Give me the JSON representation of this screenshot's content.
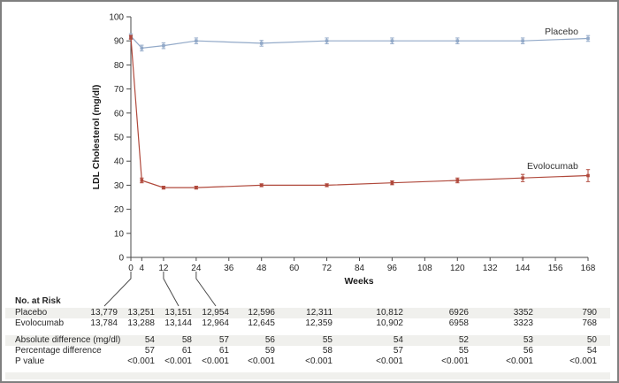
{
  "figure_labels": {
    "y_axis_title": "LDL Cholesterol (mg/dl)",
    "x_axis_title": "Weeks",
    "placebo_label": "Placebo",
    "evolocumab_label": "Evolocumab"
  },
  "colors": {
    "placebo": "#92a9c8",
    "evolocumab": "#b0493c",
    "axis": "#4a4a4a",
    "text": "#262626",
    "row_band": "#f0f0ed",
    "frame": "#7f7f7f"
  },
  "chart_data": {
    "type": "line",
    "title": "",
    "xlabel": "Weeks",
    "ylabel": "LDL Cholesterol (mg/dl)",
    "xlim": [
      0,
      168
    ],
    "ylim": [
      0,
      100
    ],
    "x_ticks": [
      0,
      4,
      12,
      24,
      36,
      48,
      60,
      72,
      84,
      96,
      108,
      120,
      132,
      144,
      156,
      168
    ],
    "y_ticks": [
      0,
      10,
      20,
      30,
      40,
      50,
      60,
      70,
      80,
      90,
      100
    ],
    "x": [
      0,
      4,
      12,
      24,
      48,
      72,
      96,
      120,
      144,
      168
    ],
    "grid": "off",
    "legend_position": "labels-at-line-end",
    "series": [
      {
        "name": "Placebo",
        "color": "#92a9c8",
        "values": [
          92,
          87,
          88,
          90,
          89,
          90,
          90,
          90,
          90,
          91
        ],
        "errors": [
          1.0,
          1.2,
          1.2,
          1.2,
          1.2,
          1.2,
          1.2,
          1.2,
          1.2,
          1.2
        ]
      },
      {
        "name": "Evolocumab",
        "color": "#b0493c",
        "values": [
          91.5,
          32,
          29,
          29,
          30,
          30,
          31,
          32,
          33,
          34
        ],
        "errors": [
          0.8,
          1.0,
          0.6,
          0.6,
          0.6,
          0.6,
          0.8,
          1.0,
          1.5,
          2.5
        ]
      }
    ]
  },
  "risk_table": {
    "header": "No. at Risk",
    "rows": [
      {
        "label": "Placebo",
        "values": [
          "13,779",
          "13,251",
          "13,151",
          "12,954",
          "12,596",
          "12,311",
          "10,812",
          "6926",
          "3352",
          "790"
        ]
      },
      {
        "label": "Evolocumab",
        "values": [
          "13,784",
          "13,288",
          "13,144",
          "12,964",
          "12,645",
          "12,359",
          "10,902",
          "6958",
          "3323",
          "768"
        ]
      }
    ]
  },
  "stats_table": {
    "rows": [
      {
        "label": "Absolute difference (mg/dl)",
        "values": [
          "54",
          "58",
          "57",
          "56",
          "55",
          "54",
          "52",
          "53",
          "50"
        ]
      },
      {
        "label": "Percentage difference",
        "values": [
          "57",
          "61",
          "61",
          "59",
          "58",
          "57",
          "55",
          "56",
          "54"
        ]
      },
      {
        "label": "P value",
        "values": [
          "<0.001",
          "<0.001",
          "<0.001",
          "<0.001",
          "<0.001",
          "<0.001",
          "<0.001",
          "<0.001",
          "<0.001"
        ]
      }
    ]
  }
}
